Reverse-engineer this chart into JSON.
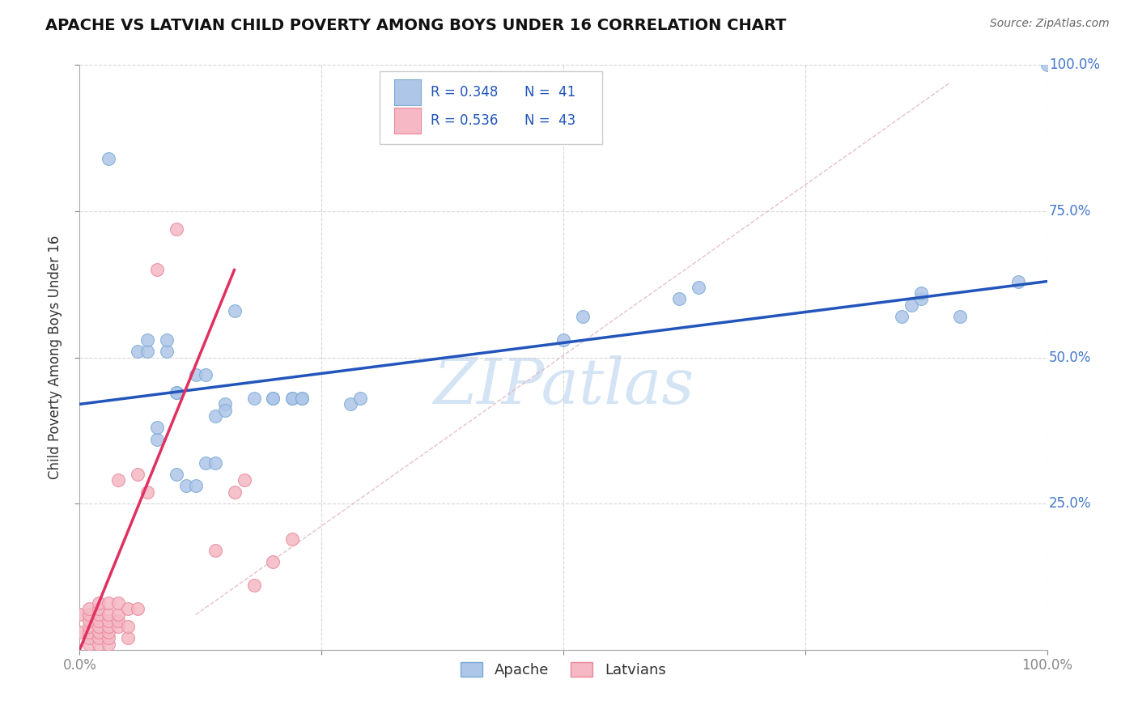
{
  "title": "APACHE VS LATVIAN CHILD POVERTY AMONG BOYS UNDER 16 CORRELATION CHART",
  "source": "Source: ZipAtlas.com",
  "ylabel": "Child Poverty Among Boys Under 16",
  "xlim": [
    0.0,
    1.0
  ],
  "ylim": [
    0.0,
    1.0
  ],
  "apache_color": "#aec6e8",
  "latvian_color": "#f5b8c4",
  "apache_edge_color": "#7aaad4",
  "latvian_edge_color": "#e8889a",
  "blue_line_color": "#2255bb",
  "pink_line_color": "#e03060",
  "diag_line_color": "#e0b0bb",
  "grid_color": "#cccccc",
  "watermark_color": "#d4e4f5",
  "legend_R1": "R = 0.348",
  "legend_N1": "N =  41",
  "legend_R2": "R = 0.536",
  "legend_N2": "N =  43",
  "tick_color": "#4477cc",
  "apache_points_x": [
    0.03,
    0.06,
    0.07,
    0.07,
    0.08,
    0.08,
    0.09,
    0.09,
    0.1,
    0.1,
    0.1,
    0.11,
    0.12,
    0.12,
    0.13,
    0.13,
    0.14,
    0.14,
    0.15,
    0.15,
    0.16,
    0.18,
    0.2,
    0.2,
    0.22,
    0.22,
    0.23,
    0.23,
    0.28,
    0.29,
    0.5,
    0.52,
    0.62,
    0.64,
    0.85,
    0.86,
    0.87,
    0.87,
    0.91,
    0.97,
    1.0
  ],
  "apache_points_y": [
    0.84,
    0.51,
    0.51,
    0.53,
    0.36,
    0.38,
    0.51,
    0.53,
    0.3,
    0.44,
    0.44,
    0.28,
    0.28,
    0.47,
    0.47,
    0.32,
    0.32,
    0.4,
    0.42,
    0.41,
    0.58,
    0.43,
    0.43,
    0.43,
    0.43,
    0.43,
    0.43,
    0.43,
    0.42,
    0.43,
    0.53,
    0.57,
    0.6,
    0.62,
    0.57,
    0.59,
    0.6,
    0.61,
    0.57,
    0.63,
    1.0
  ],
  "latvian_points_x": [
    0.0,
    0.0,
    0.01,
    0.01,
    0.01,
    0.01,
    0.01,
    0.01,
    0.01,
    0.02,
    0.02,
    0.02,
    0.02,
    0.02,
    0.02,
    0.02,
    0.02,
    0.03,
    0.03,
    0.03,
    0.03,
    0.03,
    0.03,
    0.03,
    0.04,
    0.04,
    0.04,
    0.04,
    0.04,
    0.05,
    0.05,
    0.05,
    0.06,
    0.06,
    0.07,
    0.08,
    0.1,
    0.14,
    0.16,
    0.17,
    0.18,
    0.2,
    0.22
  ],
  "latvian_points_y": [
    0.03,
    0.06,
    0.01,
    0.02,
    0.03,
    0.04,
    0.05,
    0.06,
    0.07,
    0.01,
    0.02,
    0.03,
    0.04,
    0.05,
    0.06,
    0.07,
    0.08,
    0.01,
    0.02,
    0.03,
    0.04,
    0.05,
    0.06,
    0.08,
    0.04,
    0.05,
    0.06,
    0.08,
    0.29,
    0.02,
    0.04,
    0.07,
    0.07,
    0.3,
    0.27,
    0.65,
    0.72,
    0.17,
    0.27,
    0.29,
    0.11,
    0.15,
    0.19
  ],
  "blue_line_x": [
    0.0,
    1.0
  ],
  "blue_line_y": [
    0.42,
    0.63
  ],
  "pink_line_x": [
    0.0,
    0.16
  ],
  "pink_line_y": [
    0.0,
    0.65
  ],
  "diag_line_x": [
    0.12,
    0.9
  ],
  "diag_line_y": [
    0.06,
    0.97
  ]
}
